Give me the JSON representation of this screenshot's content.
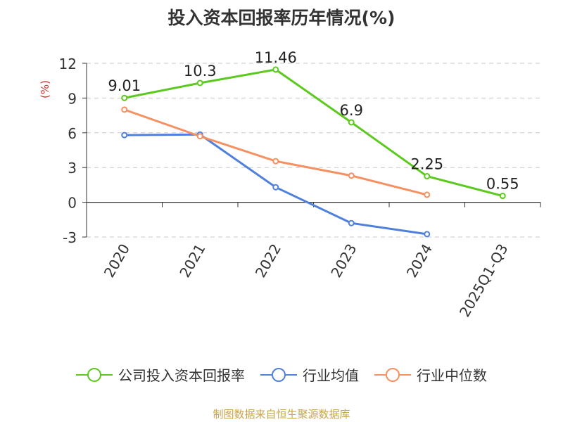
{
  "chart_data": {
    "type": "line",
    "title": "投入资本回报率历年情况(%)",
    "ylabel": "(%)",
    "categories": [
      "2020",
      "2021",
      "2022",
      "2023",
      "2024",
      "2025Q1-Q3"
    ],
    "ylim": [
      -3,
      12
    ],
    "yticks": [
      -3,
      0,
      3,
      6,
      9,
      12
    ],
    "grid": true,
    "legend_position": "bottom",
    "series": [
      {
        "name": "公司投入资本回报率",
        "color": "#5bc91d",
        "values": [
          9.01,
          10.3,
          11.46,
          6.9,
          2.25,
          0.55
        ],
        "labels": [
          "9.01",
          "10.3",
          "11.46",
          "6.9",
          "2.25",
          "0.55"
        ]
      },
      {
        "name": "行业均值",
        "color": "#4f80dc",
        "values": [
          5.8,
          5.85,
          1.3,
          -1.8,
          -2.75,
          null
        ]
      },
      {
        "name": "行业中位数",
        "color": "#f79060",
        "values": [
          8.0,
          5.7,
          3.55,
          2.3,
          0.65,
          null
        ]
      }
    ]
  },
  "footer": {
    "source": "制图数据来自恒生聚源数据库"
  }
}
